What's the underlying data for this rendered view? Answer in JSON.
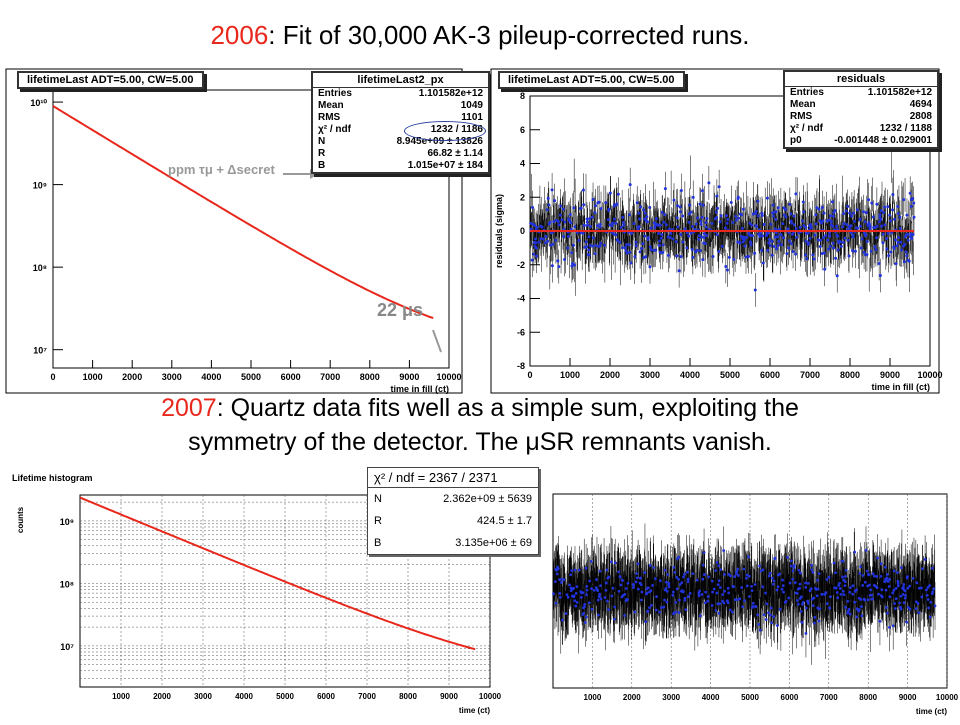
{
  "title1": {
    "year": "2006",
    "text": ": Fit of 30,000 AK-3 pileup-corrected runs."
  },
  "title2": {
    "line1_year": "2007",
    "line1_text": ": Quartz data fits well as a simple sum, exploiting the",
    "line2": "symmetry of the detector.  The μSR remnants vanish."
  },
  "panel_tl": {
    "hist_title": "lifetimeLast ADT=5.00, CW=5.00",
    "stats_title": "lifetimeLast2_px",
    "stats": [
      {
        "k": "Entries",
        "v": "1.101582e+12"
      },
      {
        "k": "Mean",
        "v": "1049"
      },
      {
        "k": "RMS",
        "v": "1101"
      },
      {
        "k": "χ² / ndf",
        "v": "1232 / 1186"
      },
      {
        "k": "N",
        "v": "8.945e+09 ± 13826"
      },
      {
        "k": "R",
        "v": "66.82 ± 1.14"
      },
      {
        "k": "B",
        "v": "1.015e+07 ± 184"
      }
    ],
    "annotation_arrow": "ppm τμ + Δsecret",
    "annotation_22": "22 μs",
    "xlabel": "time in fill (ct)"
  },
  "panel_tr": {
    "hist_title": "lifetimeLast ADT=5.00, CW=5.00",
    "stats_title": "residuals",
    "stats": [
      {
        "k": "Entries",
        "v": "1.101582e+12"
      },
      {
        "k": "Mean",
        "v": "4694"
      },
      {
        "k": "RMS",
        "v": "2808"
      },
      {
        "k": "χ² / ndf",
        "v": "1232 / 1188"
      },
      {
        "k": "p0",
        "v": "-0.001448 ± 0.029001"
      }
    ],
    "ylabel": "residuals (sigma)",
    "xlabel": "time in fill (ct)"
  },
  "panel_bl": {
    "hist_title": "Lifetime histogram",
    "ylabel": "counts",
    "xlabel": "time (ct)",
    "stats_header": "χ² / ndf =  2367 / 2371",
    "stats": [
      {
        "k": "N",
        "v": "2.362e+09 ± 5639"
      },
      {
        "k": "R",
        "v": "424.5 ± 1.7"
      },
      {
        "k": "B",
        "v": "3.135e+06 ± 69"
      }
    ]
  },
  "panel_br": {
    "xlabel": "time (ct)"
  },
  "chart_data": [
    {
      "type": "line",
      "id": "lifetime-2006",
      "title": "lifetimeLast ADT=5.00, CW=5.00",
      "xlabel": "time in fill (ct)",
      "ylabel": "",
      "yscale": "log",
      "xlim": [
        0,
        10000
      ],
      "ylim": [
        6000000,
        14000000000
      ],
      "xticks": [
        0,
        1000,
        2000,
        3000,
        4000,
        5000,
        6000,
        7000,
        8000,
        9000,
        10000
      ],
      "yticks": [
        10000000,
        100000000,
        1000000000,
        10000000000
      ],
      "ytick_labels": [
        "10⁷",
        "10⁸",
        "10⁹",
        "10¹⁰"
      ],
      "series": [
        {
          "color": "#e8281c",
          "model": {
            "N": 8945000000,
            "B": 10150000,
            "tau_ct": 1486,
            "xmax": 9600
          }
        }
      ]
    },
    {
      "type": "scatter",
      "id": "residuals-2006",
      "title": "lifetimeLast ADT=5.00, CW=5.00",
      "xlabel": "time in fill (ct)",
      "ylabel": "residuals (sigma)",
      "xlim": [
        0,
        10000
      ],
      "ylim": [
        -8,
        8
      ],
      "xticks": [
        0,
        1000,
        2000,
        3000,
        4000,
        5000,
        6000,
        7000,
        8000,
        9000,
        10000
      ],
      "yticks": [
        -8,
        -6,
        -4,
        -2,
        0,
        2,
        4,
        6,
        8
      ],
      "fit_line": 0,
      "fit_color": "#e8281c",
      "point_color": "#2233dd",
      "spread_sigma": 1
    },
    {
      "type": "line",
      "id": "lifetime-2007",
      "title": "Lifetime histogram",
      "xlabel": "time (ct)",
      "ylabel": "counts",
      "yscale": "log",
      "xlim": [
        0,
        10000
      ],
      "ylim": [
        2200000,
        2600000000
      ],
      "xticks": [
        1000,
        2000,
        3000,
        4000,
        5000,
        6000,
        7000,
        8000,
        9000,
        10000
      ],
      "yticks": [
        10000000,
        100000000,
        1000000000
      ],
      "ytick_labels": [
        "10⁷",
        "10⁸",
        "10⁹"
      ],
      "series": [
        {
          "color": "#e8281c",
          "model": {
            "N": 2362000000,
            "B": 3135000,
            "tau_ct": 1600,
            "xmax": 9650
          }
        }
      ]
    },
    {
      "type": "scatter",
      "id": "residuals-2007",
      "xlabel": "time (ct)",
      "xlim": [
        0,
        10000
      ],
      "xticks": [
        1000,
        2000,
        3000,
        4000,
        5000,
        6000,
        7000,
        8000,
        9000,
        10000
      ],
      "point_color": "#2233dd",
      "spread_sigma": 1
    }
  ]
}
